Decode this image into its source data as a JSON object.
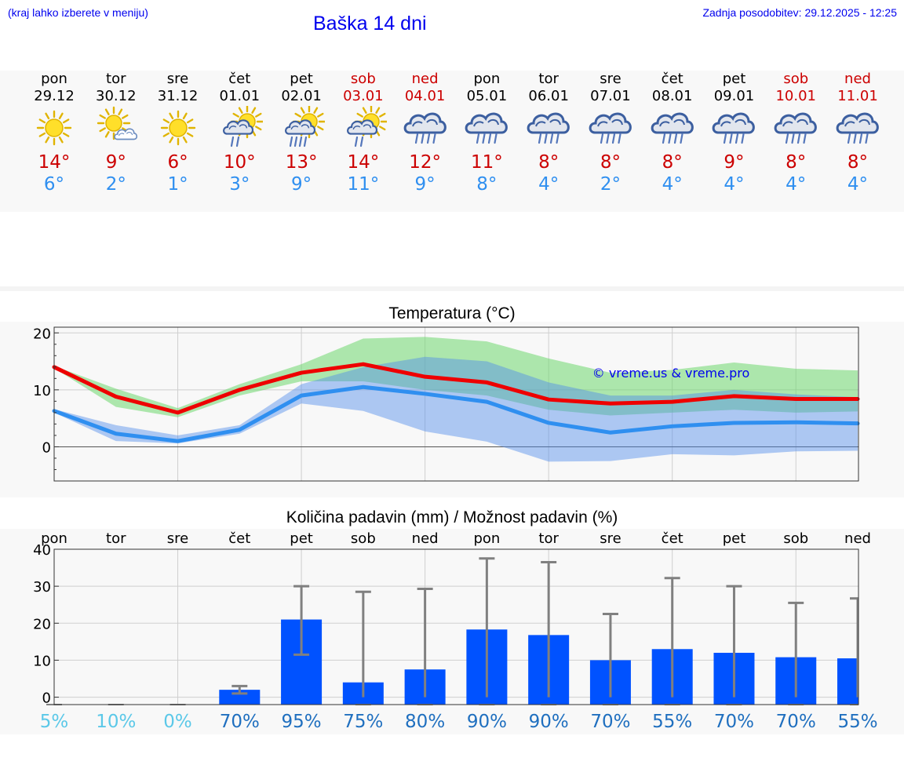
{
  "header": {
    "menu_hint": "(kraj lahko izberete v meniju)",
    "title": "Baška 14 dni",
    "updated": "Zadnja posodobitev: 29.12.2025 - 12:25"
  },
  "colors": {
    "max": "#ee0000",
    "min": "#2f8ff0",
    "bar": "#0052ff",
    "whisker": "#808080"
  },
  "days": [
    {
      "name": "pon",
      "date": "29.12",
      "weekend": false,
      "icon": "sun-icon",
      "tmax": "14°",
      "tmin": "6°"
    },
    {
      "name": "tor",
      "date": "30.12",
      "weekend": false,
      "icon": "sun-cloud-icon",
      "tmax": "9°",
      "tmin": "2°"
    },
    {
      "name": "sre",
      "date": "31.12",
      "weekend": false,
      "icon": "sun-icon",
      "tmax": "6°",
      "tmin": "1°"
    },
    {
      "name": "čet",
      "date": "01.01",
      "weekend": false,
      "icon": "sun-rain-light-icon",
      "tmax": "10°",
      "tmin": "3°"
    },
    {
      "name": "pet",
      "date": "02.01",
      "weekend": false,
      "icon": "sun-rain-icon",
      "tmax": "13°",
      "tmin": "9°"
    },
    {
      "name": "sob",
      "date": "03.01",
      "weekend": true,
      "icon": "sun-rain-light-icon",
      "tmax": "14°",
      "tmin": "11°"
    },
    {
      "name": "ned",
      "date": "04.01",
      "weekend": true,
      "icon": "rain-cloud-icon",
      "tmax": "12°",
      "tmin": "9°"
    },
    {
      "name": "pon",
      "date": "05.01",
      "weekend": false,
      "icon": "rain-cloud-icon",
      "tmax": "11°",
      "tmin": "8°"
    },
    {
      "name": "tor",
      "date": "06.01",
      "weekend": false,
      "icon": "rain-cloud-icon",
      "tmax": "8°",
      "tmin": "4°"
    },
    {
      "name": "sre",
      "date": "07.01",
      "weekend": false,
      "icon": "rain-cloud-icon",
      "tmax": "8°",
      "tmin": "2°"
    },
    {
      "name": "čet",
      "date": "08.01",
      "weekend": false,
      "icon": "rain-cloud-icon",
      "tmax": "8°",
      "tmin": "4°"
    },
    {
      "name": "pet",
      "date": "09.01",
      "weekend": false,
      "icon": "rain-cloud-icon",
      "tmax": "9°",
      "tmin": "4°"
    },
    {
      "name": "sob",
      "date": "10.01",
      "weekend": true,
      "icon": "rain-cloud-icon",
      "tmax": "8°",
      "tmin": "4°"
    },
    {
      "name": "ned",
      "date": "11.01",
      "weekend": true,
      "icon": "rain-cloud-icon",
      "tmax": "8°",
      "tmin": "4°"
    }
  ],
  "chart_data": [
    {
      "type": "line",
      "title": "Temperatura (°C)",
      "ylim": [
        -6,
        21
      ],
      "yticks": [
        "20",
        "10",
        "0"
      ],
      "watermark": "© vreme.us & vreme.pro",
      "series": [
        {
          "name": "max",
          "values": [
            14,
            8.8,
            6,
            10,
            13,
            14.5,
            12.3,
            11.3,
            8.3,
            7.6,
            7.9,
            8.9,
            8.4,
            8.4
          ]
        },
        {
          "name": "min",
          "values": [
            6.3,
            2.3,
            1,
            3,
            9,
            10.5,
            9.3,
            7.9,
            4.2,
            2.5,
            3.6,
            4.2,
            4.3,
            4.1
          ]
        }
      ],
      "bands": [
        {
          "name": "max-range",
          "low": [
            13.8,
            7,
            5.2,
            9,
            11.5,
            11.5,
            10,
            9,
            6.5,
            5.5,
            6,
            6.5,
            6,
            6.2
          ],
          "high": [
            14.2,
            10.2,
            6.8,
            11,
            14.5,
            19,
            19.3,
            18.5,
            15.5,
            13,
            13.5,
            14.8,
            13.7,
            13.4
          ]
        },
        {
          "name": "min-range",
          "low": [
            6,
            1,
            0.6,
            2.3,
            7.6,
            6.3,
            2.7,
            0.9,
            -2.6,
            -2.5,
            -1.3,
            -1.5,
            -0.8,
            -0.7
          ],
          "high": [
            6.6,
            3.8,
            2,
            3.8,
            11,
            14,
            15.8,
            15,
            11.3,
            9,
            9,
            10,
            9.2,
            8.7
          ]
        }
      ]
    },
    {
      "type": "bar",
      "title": "Količina padavin (mm) / Možnost padavin (%)",
      "ylim": [
        -2,
        40
      ],
      "yticks": [
        "40",
        "30",
        "20",
        "10",
        "0"
      ],
      "categories": [
        "pon",
        "tor",
        "sre",
        "čet",
        "pet",
        "sob",
        "ned",
        "pon",
        "tor",
        "sre",
        "čet",
        "pet",
        "sob",
        "ned"
      ],
      "values": [
        0,
        0,
        0,
        2,
        21,
        4,
        7.5,
        18.3,
        16.8,
        10,
        13,
        12,
        10.8,
        10.5
      ],
      "whisker_low": [
        0,
        0,
        0,
        1,
        11.5,
        0,
        0,
        0,
        0,
        0,
        0,
        0,
        0,
        0
      ],
      "whisker_high": [
        0,
        0,
        0,
        3,
        30,
        28.5,
        29.3,
        37.5,
        36.5,
        22.5,
        32.2,
        30,
        25.5,
        26.7
      ],
      "probabilities": [
        "5%",
        "10%",
        "0%",
        "70%",
        "95%",
        "75%",
        "80%",
        "90%",
        "90%",
        "70%",
        "55%",
        "70%",
        "70%",
        "55%"
      ],
      "prob_low": [
        true,
        true,
        true,
        false,
        false,
        false,
        false,
        false,
        false,
        false,
        false,
        false,
        false,
        false
      ]
    }
  ]
}
